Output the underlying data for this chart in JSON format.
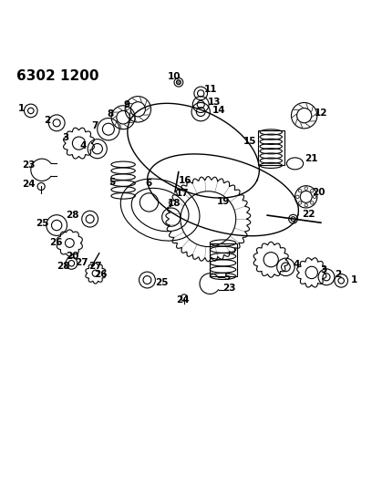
{
  "title": "6302 1200",
  "bg_color": "#ffffff",
  "line_color": "#000000",
  "title_fontsize": 11,
  "label_fontsize": 7.5,
  "figsize": [
    4.08,
    5.33
  ],
  "dpi": 100
}
